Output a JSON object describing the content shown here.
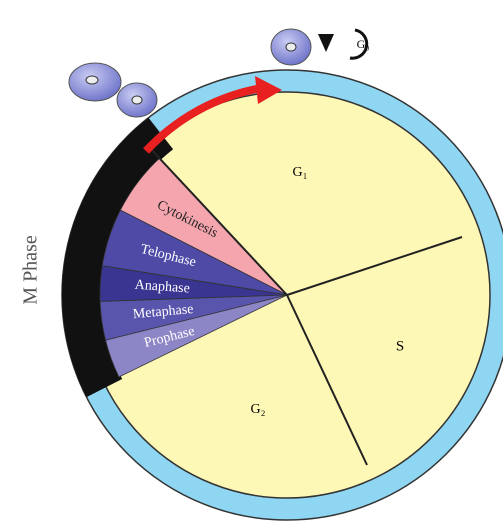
{
  "side_label": "M Phase",
  "phases": {
    "g1": "G₁",
    "s": "S",
    "g2": "G₂",
    "g0": "G₀"
  },
  "m_phases": [
    "Cytokinesis",
    "Telophase",
    "Anaphase",
    "Metaphase",
    "Prophase"
  ]
}
